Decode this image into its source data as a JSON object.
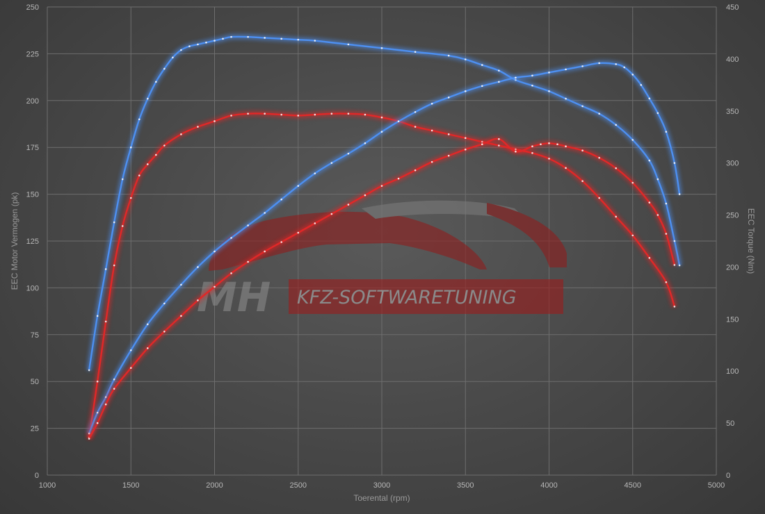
{
  "chart_data": {
    "type": "line",
    "xlabel": "Toerental (rpm)",
    "ylabel": "EEC Motor Vermogen (pk)",
    "y2label": "EEC Torque (Nm)",
    "xlim": [
      1000,
      5000
    ],
    "ylim": [
      0,
      250
    ],
    "y2lim": [
      0,
      450
    ],
    "x_ticks": [
      "1000",
      "1500",
      "2000",
      "2500",
      "3000",
      "3500",
      "4000",
      "4500",
      "5000"
    ],
    "y_ticks": [
      "0",
      "25",
      "50",
      "75",
      "100",
      "125",
      "150",
      "175",
      "200",
      "225",
      "250"
    ],
    "y2_ticks": [
      "0",
      "50",
      "100",
      "150",
      "200",
      "250",
      "300",
      "350",
      "400",
      "450"
    ],
    "grid": true,
    "series": [
      {
        "color": "#4d8ff0",
        "axis": "left",
        "points": [
          [
            1250,
            56
          ],
          [
            1300,
            85
          ],
          [
            1350,
            110
          ],
          [
            1400,
            135
          ],
          [
            1450,
            158
          ],
          [
            1500,
            175
          ],
          [
            1550,
            190
          ],
          [
            1600,
            201
          ],
          [
            1650,
            210
          ],
          [
            1700,
            217
          ],
          [
            1750,
            223
          ],
          [
            1800,
            227
          ],
          [
            1850,
            229
          ],
          [
            1900,
            230
          ],
          [
            1950,
            231
          ],
          [
            2000,
            232
          ],
          [
            2050,
            233
          ],
          [
            2100,
            234
          ],
          [
            2200,
            234
          ],
          [
            2300,
            233.5
          ],
          [
            2400,
            233
          ],
          [
            2500,
            232.5
          ],
          [
            2600,
            232
          ],
          [
            2800,
            230
          ],
          [
            3000,
            228
          ],
          [
            3200,
            226
          ],
          [
            3400,
            224
          ],
          [
            3500,
            222
          ],
          [
            3600,
            219
          ],
          [
            3700,
            216
          ],
          [
            3800,
            211
          ],
          [
            3900,
            208
          ],
          [
            4000,
            205
          ],
          [
            4100,
            201
          ],
          [
            4200,
            197
          ],
          [
            4300,
            193
          ],
          [
            4400,
            187
          ],
          [
            4500,
            179
          ],
          [
            4600,
            168
          ],
          [
            4650,
            158
          ],
          [
            4700,
            145
          ],
          [
            4750,
            125
          ],
          [
            4780,
            112
          ]
        ]
      },
      {
        "color": "#e02828",
        "axis": "left",
        "points": [
          [
            1250,
            20
          ],
          [
            1300,
            50
          ],
          [
            1350,
            82
          ],
          [
            1400,
            112
          ],
          [
            1450,
            133
          ],
          [
            1500,
            148
          ],
          [
            1550,
            160
          ],
          [
            1600,
            166
          ],
          [
            1650,
            171
          ],
          [
            1700,
            176
          ],
          [
            1800,
            182
          ],
          [
            1900,
            186
          ],
          [
            2000,
            189
          ],
          [
            2100,
            192
          ],
          [
            2200,
            193
          ],
          [
            2300,
            193
          ],
          [
            2400,
            192.5
          ],
          [
            2500,
            192
          ],
          [
            2600,
            192.5
          ],
          [
            2700,
            193
          ],
          [
            2800,
            193
          ],
          [
            2900,
            192.5
          ],
          [
            3000,
            191
          ],
          [
            3100,
            189
          ],
          [
            3200,
            186
          ],
          [
            3300,
            184
          ],
          [
            3400,
            182
          ],
          [
            3500,
            180
          ],
          [
            3600,
            178
          ],
          [
            3700,
            176
          ],
          [
            3800,
            174
          ],
          [
            3900,
            172
          ],
          [
            4000,
            169
          ],
          [
            4100,
            164
          ],
          [
            4200,
            157
          ],
          [
            4300,
            148
          ],
          [
            4400,
            138
          ],
          [
            4500,
            128
          ],
          [
            4600,
            116
          ],
          [
            4700,
            103
          ],
          [
            4750,
            90
          ]
        ]
      },
      {
        "color": "#4d8ff0",
        "axis": "right",
        "points": [
          [
            1250,
            40
          ],
          [
            1300,
            60
          ],
          [
            1350,
            75
          ],
          [
            1400,
            92
          ],
          [
            1500,
            120
          ],
          [
            1600,
            145
          ],
          [
            1700,
            165
          ],
          [
            1800,
            183
          ],
          [
            1900,
            200
          ],
          [
            2000,
            215
          ],
          [
            2100,
            228
          ],
          [
            2200,
            240
          ],
          [
            2300,
            252
          ],
          [
            2400,
            265
          ],
          [
            2500,
            278
          ],
          [
            2600,
            290
          ],
          [
            2700,
            300
          ],
          [
            2800,
            309
          ],
          [
            2900,
            319
          ],
          [
            3000,
            330
          ],
          [
            3100,
            340
          ],
          [
            3200,
            349
          ],
          [
            3300,
            357
          ],
          [
            3400,
            363
          ],
          [
            3500,
            369
          ],
          [
            3600,
            374
          ],
          [
            3700,
            378
          ],
          [
            3800,
            382
          ],
          [
            3900,
            384
          ],
          [
            4000,
            387
          ],
          [
            4100,
            390
          ],
          [
            4200,
            393
          ],
          [
            4300,
            396
          ],
          [
            4400,
            395
          ],
          [
            4450,
            392
          ],
          [
            4500,
            385
          ],
          [
            4550,
            375
          ],
          [
            4600,
            362
          ],
          [
            4650,
            348
          ],
          [
            4700,
            330
          ],
          [
            4750,
            300
          ],
          [
            4780,
            270
          ]
        ]
      },
      {
        "color": "#e02828",
        "axis": "right",
        "points": [
          [
            1250,
            35
          ],
          [
            1300,
            50
          ],
          [
            1350,
            68
          ],
          [
            1400,
            83
          ],
          [
            1500,
            103
          ],
          [
            1600,
            122
          ],
          [
            1700,
            138
          ],
          [
            1800,
            153
          ],
          [
            1900,
            168
          ],
          [
            2000,
            181
          ],
          [
            2100,
            194
          ],
          [
            2200,
            205
          ],
          [
            2300,
            215
          ],
          [
            2400,
            224
          ],
          [
            2500,
            233
          ],
          [
            2600,
            242
          ],
          [
            2700,
            251
          ],
          [
            2800,
            260
          ],
          [
            2900,
            269
          ],
          [
            3000,
            278
          ],
          [
            3100,
            285
          ],
          [
            3200,
            293
          ],
          [
            3300,
            301
          ],
          [
            3400,
            307
          ],
          [
            3500,
            313
          ],
          [
            3600,
            318
          ],
          [
            3700,
            323
          ],
          [
            3800,
            311
          ],
          [
            3900,
            316
          ],
          [
            3950,
            318
          ],
          [
            4000,
            319
          ],
          [
            4050,
            318
          ],
          [
            4100,
            316
          ],
          [
            4200,
            312
          ],
          [
            4300,
            305
          ],
          [
            4400,
            295
          ],
          [
            4500,
            281
          ],
          [
            4600,
            262
          ],
          [
            4650,
            250
          ],
          [
            4700,
            232
          ],
          [
            4750,
            202
          ]
        ]
      }
    ]
  },
  "watermark": {
    "brand": "MH",
    "text": "KFZ-SOFTWARETUNING"
  }
}
